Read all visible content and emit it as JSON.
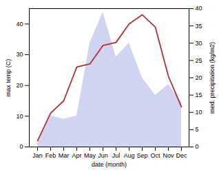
{
  "chart_data": {
    "type": "line",
    "xlabel": "date (month)",
    "ylabel": "max temp (C)",
    "y2label": "med. precipitation (kg/m2)",
    "categories": [
      "Jan",
      "Feb",
      "Mar",
      "Apr",
      "May",
      "Jun",
      "Jul",
      "Aug",
      "Sep",
      "Oct",
      "Nov",
      "Dec"
    ],
    "series": [
      {
        "type": "area",
        "axis": "y2",
        "color": "#b0b8e8",
        "values": [
          1,
          9,
          8,
          9,
          30,
          39,
          26,
          30,
          20,
          15,
          18,
          13
        ]
      },
      {
        "type": "line",
        "color": "#b03030",
        "values": [
          2,
          11,
          15,
          26,
          27,
          33,
          34,
          40,
          43,
          39,
          23,
          13
        ]
      }
    ],
    "ylim": [
      0,
      45
    ],
    "yticks": [
      0,
      10,
      20,
      30,
      40
    ],
    "y2lim": [
      0,
      40
    ],
    "y2ticks": [
      0,
      5,
      10,
      15,
      20,
      25,
      30,
      35,
      40
    ]
  }
}
